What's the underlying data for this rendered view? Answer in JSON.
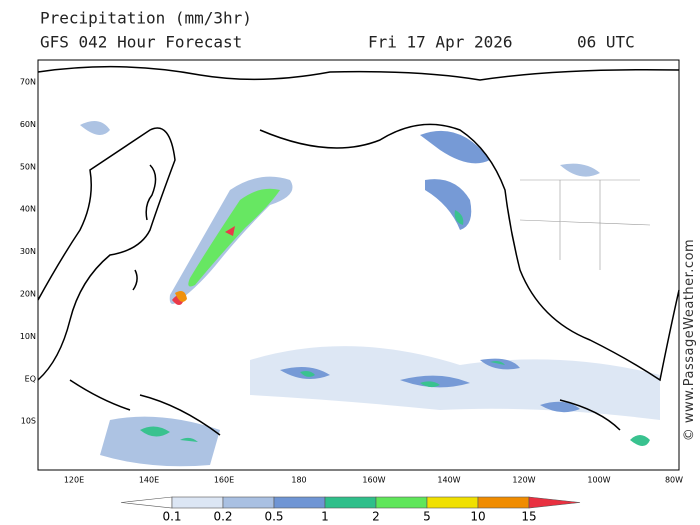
{
  "header": {
    "title": "Precipitation (mm/3hr)",
    "model": "GFS 042 Hour Forecast",
    "date": "Fri 17 Apr 2026",
    "time": "06 UTC"
  },
  "lat_labels": [
    "70N",
    "60N",
    "50N",
    "40N",
    "30N",
    "20N",
    "10N",
    "EQ",
    "10S"
  ],
  "lon_labels": [
    "120E",
    "140E",
    "160E",
    "180",
    "160W",
    "140W",
    "120W",
    "100W",
    "80W"
  ],
  "legend": {
    "levels": [
      0.1,
      0.2,
      0.5,
      1,
      2,
      5,
      10,
      15
    ],
    "colors": [
      "#ffffff",
      "#dce6f4",
      "#a9c0e2",
      "#6f95d4",
      "#2fbf8a",
      "#5fe65a",
      "#f0e000",
      "#f08c00",
      "#e83040"
    ]
  },
  "watermark": "© www.PassageWeather.com"
}
